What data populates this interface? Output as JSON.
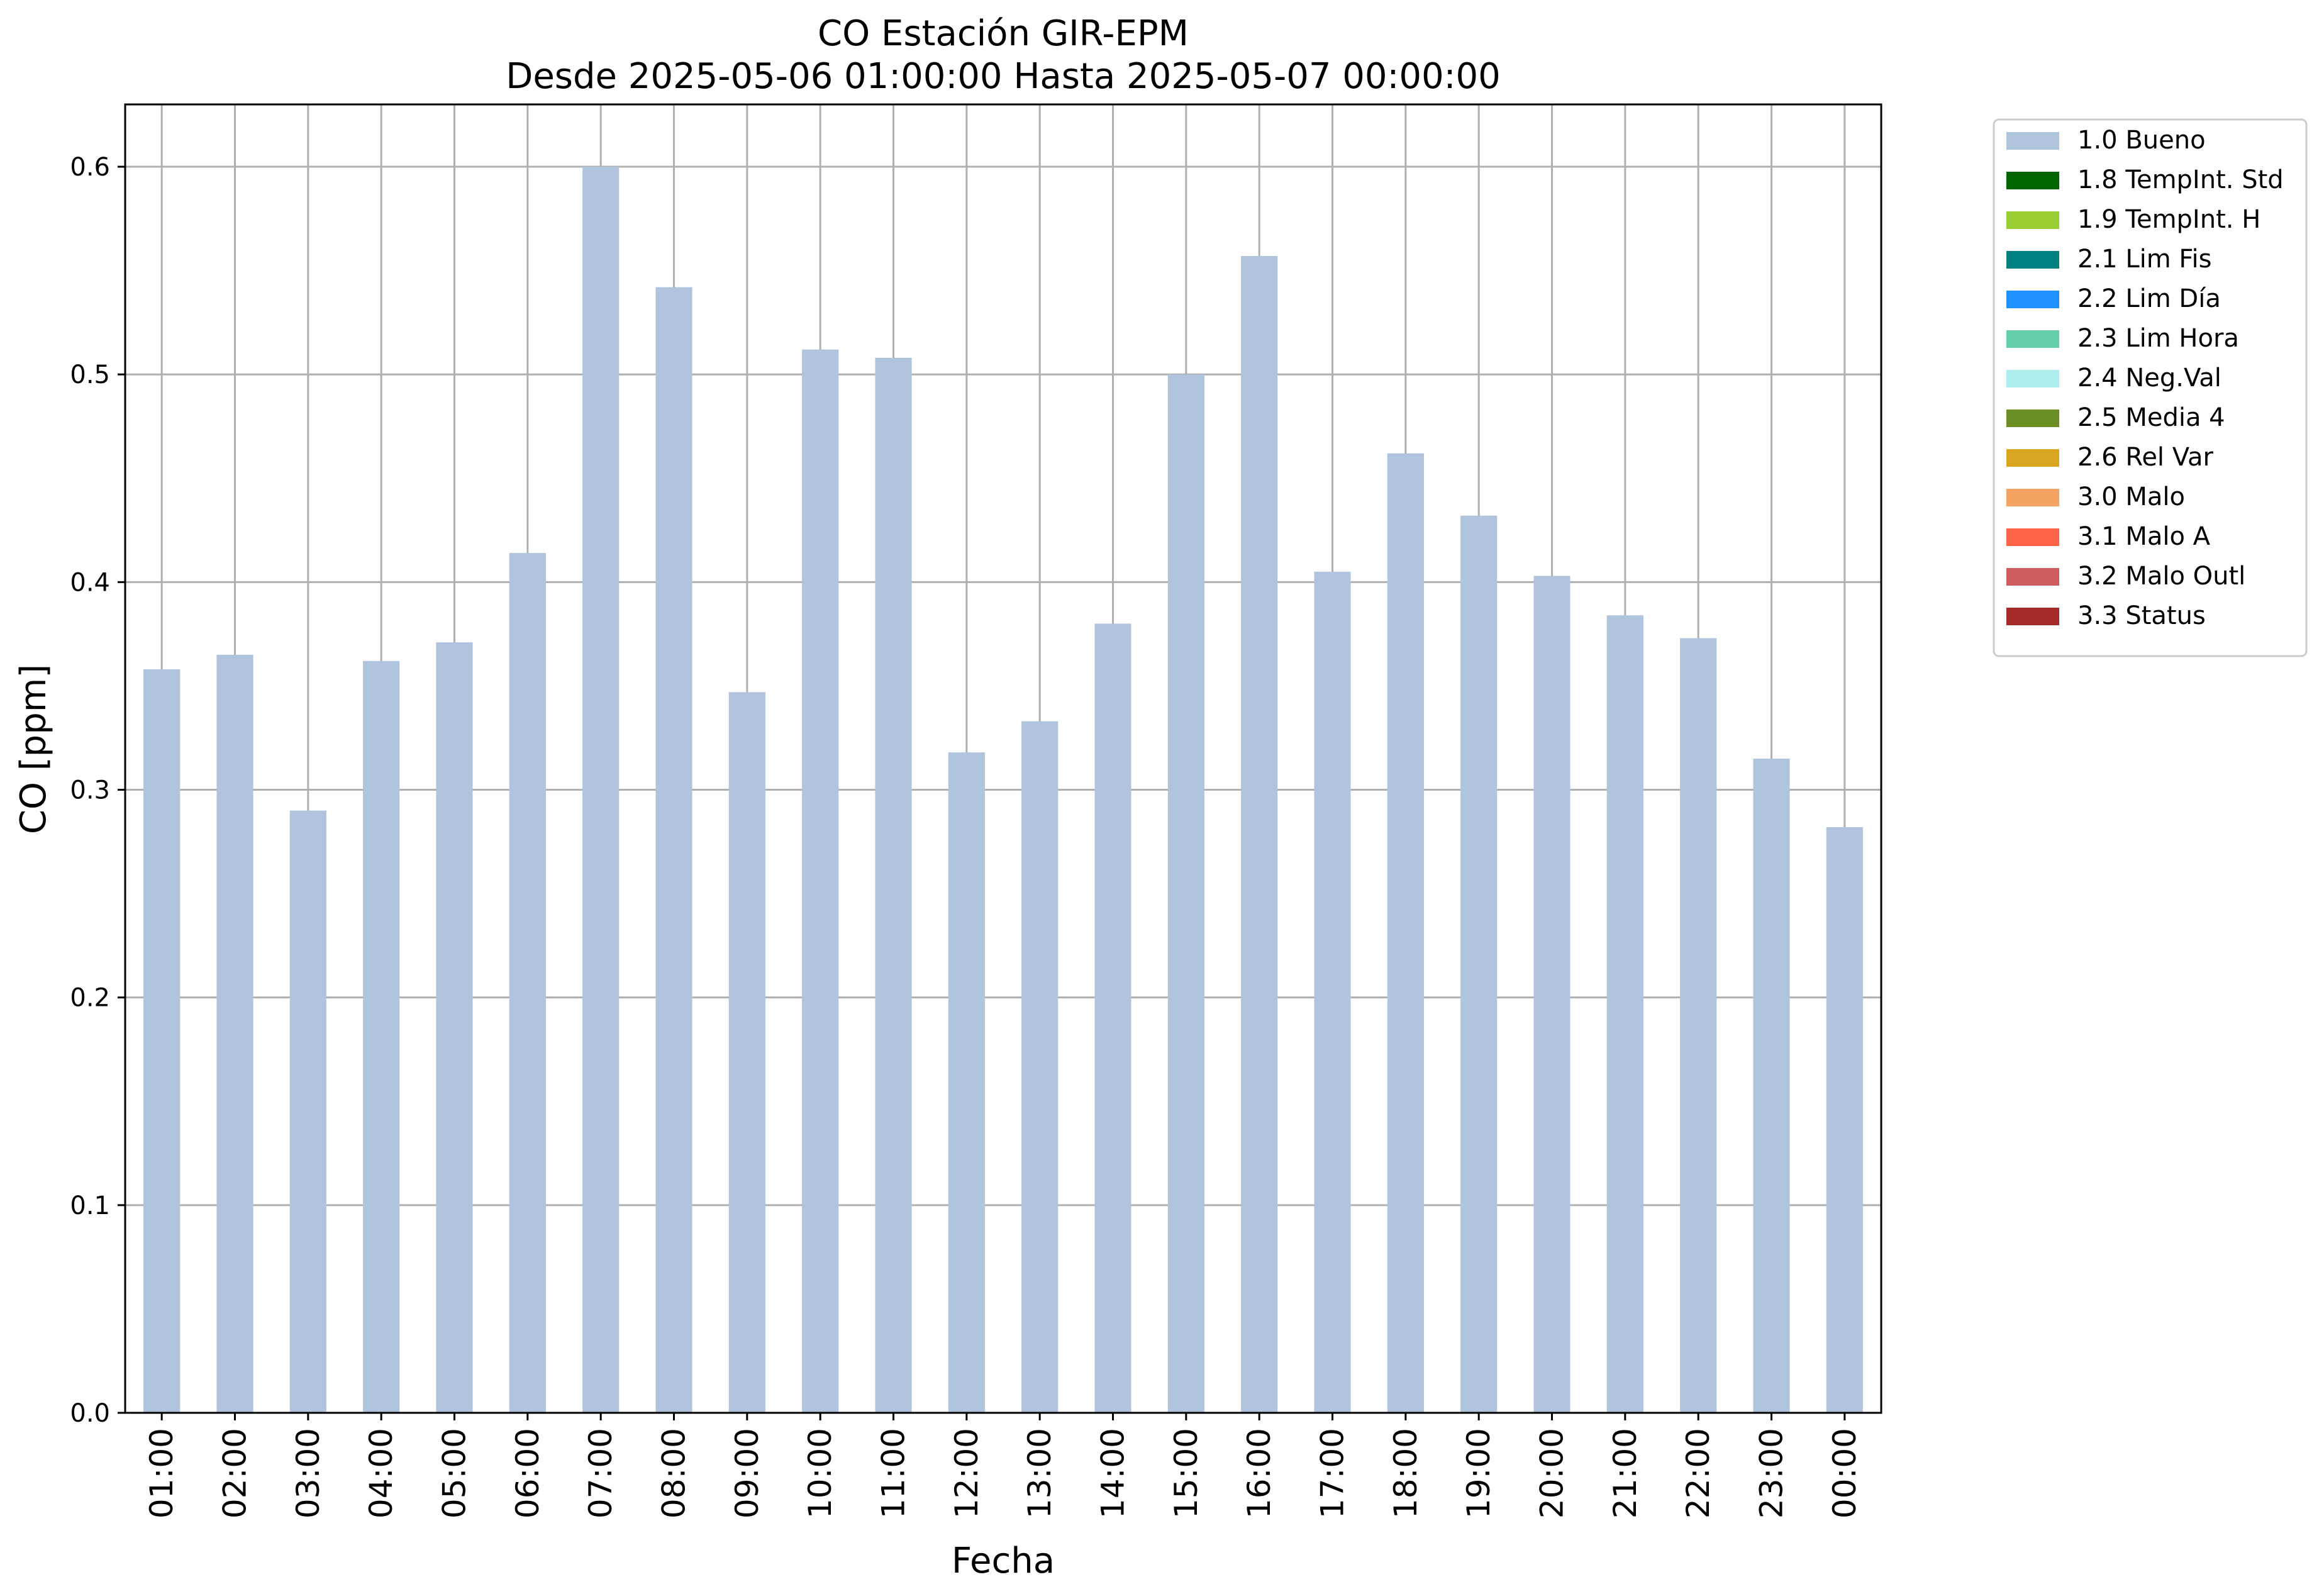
{
  "chart_data": {
    "type": "bar",
    "title": "CO Estación GIR-EPM",
    "subtitle": "Desde 2025-05-06 01:00:00 Hasta 2025-05-07 00:00:00",
    "xlabel": "Fecha",
    "ylabel": "CO [ppm]",
    "ylim": [
      0,
      0.63
    ],
    "yticks": [
      "0.0",
      "0.1",
      "0.2",
      "0.3",
      "0.4",
      "0.5",
      "0.6"
    ],
    "grid": true,
    "legend_position": "outside top-right",
    "categories": [
      "01:00",
      "02:00",
      "03:00",
      "04:00",
      "05:00",
      "06:00",
      "07:00",
      "08:00",
      "09:00",
      "10:00",
      "11:00",
      "12:00",
      "13:00",
      "14:00",
      "15:00",
      "16:00",
      "17:00",
      "18:00",
      "19:00",
      "20:00",
      "21:00",
      "22:00",
      "23:00",
      "00:00"
    ],
    "series": [
      {
        "name": "1.0 Bueno",
        "color": "#b0c4de",
        "values": [
          0.358,
          0.365,
          0.29,
          0.362,
          0.371,
          0.414,
          0.6,
          0.542,
          0.347,
          0.512,
          0.508,
          0.318,
          0.333,
          0.38,
          0.5,
          0.557,
          0.405,
          0.462,
          0.432,
          0.403,
          0.384,
          0.373,
          0.315,
          0.282
        ]
      }
    ],
    "legend": [
      {
        "label": "1.0 Bueno",
        "color": "#b0c4de"
      },
      {
        "label": "1.8 TempInt. Std",
        "color": "#006400"
      },
      {
        "label": "1.9 TempInt. H",
        "color": "#9acd32"
      },
      {
        "label": "2.1 Lim Fis",
        "color": "#008080"
      },
      {
        "label": "2.2 Lim Día",
        "color": "#1e90ff"
      },
      {
        "label": "2.3 Lim Hora",
        "color": "#66cdaa"
      },
      {
        "label": "2.4 Neg.Val",
        "color": "#afeeee"
      },
      {
        "label": "2.5 Media 4",
        "color": "#6b8e23"
      },
      {
        "label": "2.6 Rel Var",
        "color": "#daa520"
      },
      {
        "label": "3.0 Malo",
        "color": "#f4a460"
      },
      {
        "label": "3.1 Malo A",
        "color": "#ff6347"
      },
      {
        "label": "3.2 Malo Outl",
        "color": "#cd5c5c"
      },
      {
        "label": "3.3 Status",
        "color": "#a52a2a"
      }
    ]
  }
}
